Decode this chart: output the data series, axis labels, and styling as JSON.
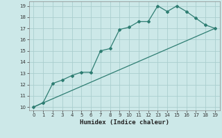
{
  "title": "",
  "xlabel": "Humidex (Indice chaleur)",
  "xlim": [
    -0.5,
    19.5
  ],
  "ylim": [
    9.7,
    19.4
  ],
  "xticks": [
    0,
    1,
    2,
    3,
    4,
    5,
    6,
    7,
    8,
    9,
    10,
    11,
    12,
    13,
    14,
    15,
    16,
    17,
    18,
    19
  ],
  "yticks": [
    10,
    11,
    12,
    13,
    14,
    15,
    16,
    17,
    18,
    19
  ],
  "bg_color": "#cce8e8",
  "line_color": "#2e7d72",
  "grid_color": "#aacece",
  "curve1_x": [
    0,
    1,
    2,
    3,
    4,
    5,
    6,
    7,
    8,
    9,
    10,
    11,
    12,
    13,
    14,
    15,
    16,
    17,
    18,
    19
  ],
  "curve1_y": [
    10.0,
    10.4,
    12.1,
    12.4,
    12.8,
    13.1,
    13.1,
    15.0,
    15.2,
    16.9,
    17.1,
    17.6,
    17.6,
    19.0,
    18.5,
    19.0,
    18.5,
    17.9,
    17.3,
    17.0
  ],
  "curve2_x": [
    0,
    19
  ],
  "curve2_y": [
    10.0,
    17.0
  ]
}
